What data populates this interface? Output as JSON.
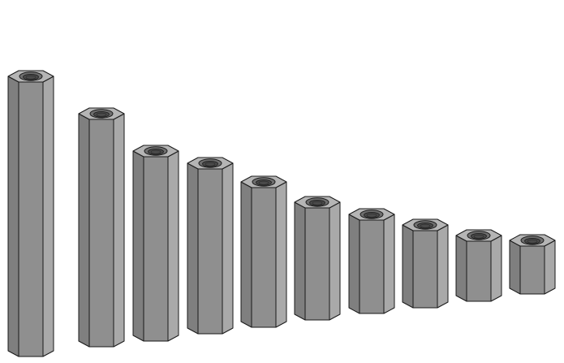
{
  "scene": {
    "subject": "hex-standoff-series",
    "count": 10,
    "colors": {
      "background": "#ffffff",
      "face_left": "#7f7f7f",
      "face_front": "#8f8f8f",
      "face_right": "#a9a9a9",
      "top": "#b5b5b5",
      "thread_outer": "#6e6e6e",
      "thread_inner": "#4a4a4a",
      "outline": "#1a1a1a"
    },
    "items": [
      {
        "name": "standoff-1"
      },
      {
        "name": "standoff-2"
      },
      {
        "name": "standoff-3"
      },
      {
        "name": "standoff-4"
      },
      {
        "name": "standoff-5"
      },
      {
        "name": "standoff-6"
      },
      {
        "name": "standoff-7"
      },
      {
        "name": "standoff-8"
      },
      {
        "name": "standoff-9"
      },
      {
        "name": "standoff-10"
      }
    ]
  }
}
